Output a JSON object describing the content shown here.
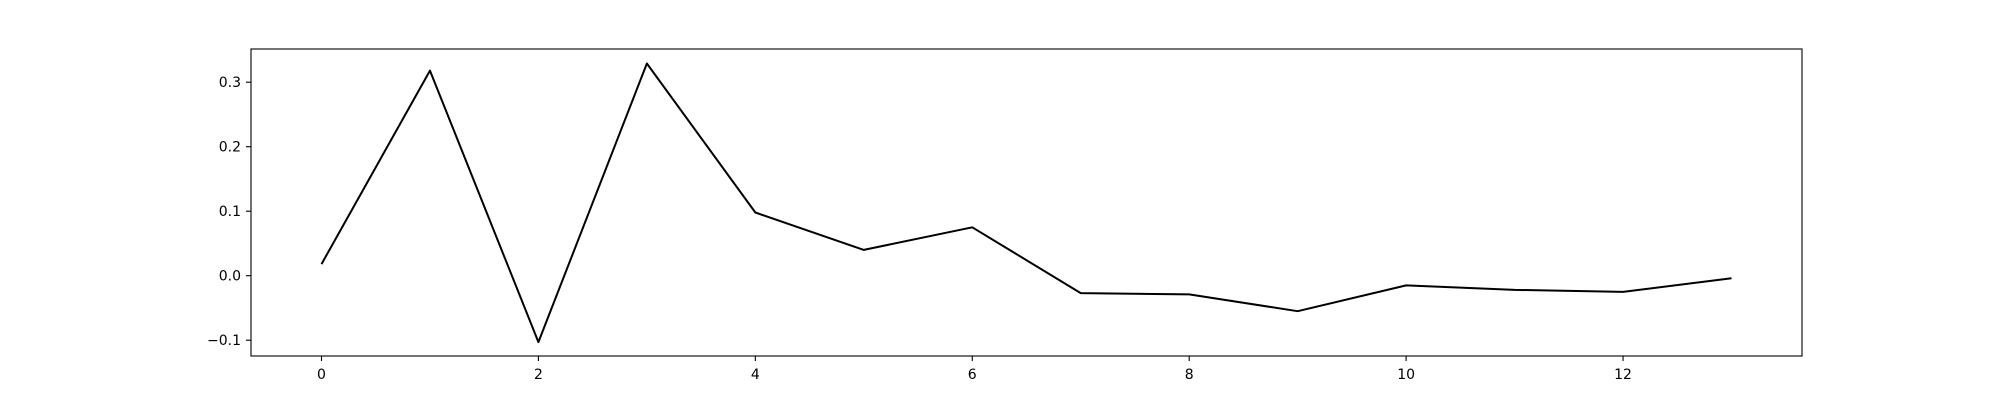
{
  "chart_data": {
    "type": "line",
    "title": "",
    "xlabel": "",
    "ylabel": "",
    "xlim": [
      -0.65,
      13.65
    ],
    "ylim": [
      -0.1245,
      0.3515
    ],
    "grid": false,
    "x_ticks": [
      0,
      2,
      4,
      6,
      8,
      10,
      12
    ],
    "x_tick_labels": [
      "0",
      "2",
      "4",
      "6",
      "8",
      "10",
      "12"
    ],
    "y_ticks": [
      -0.1,
      0.0,
      0.1,
      0.2,
      0.3
    ],
    "y_tick_labels": [
      "−0.1",
      "0.0",
      "0.1",
      "0.2",
      "0.3"
    ],
    "series": [
      {
        "color": "#000000",
        "x": [
          0,
          1,
          2,
          3,
          4,
          5,
          6,
          7,
          8,
          9,
          10,
          11,
          12,
          13
        ],
        "values": [
          0.018,
          0.318,
          -0.103,
          0.329,
          0.098,
          0.04,
          0.075,
          -0.027,
          -0.029,
          -0.055,
          -0.015,
          -0.022,
          -0.025,
          -0.004
        ]
      }
    ]
  }
}
